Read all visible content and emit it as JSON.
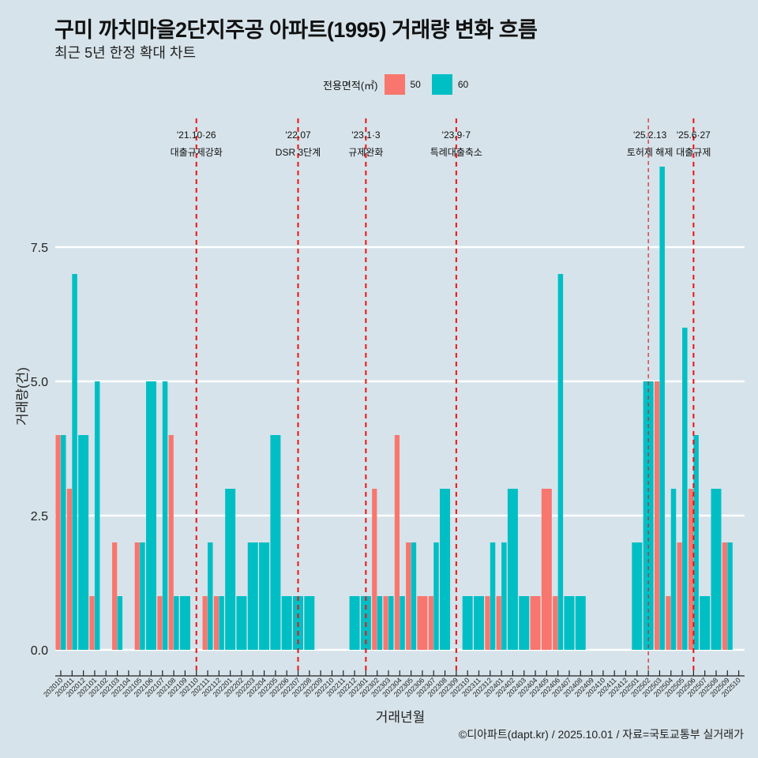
{
  "header": {
    "title": "구미 까치마을2단지주공 아파트(1995) 거래량 변화 흐름",
    "subtitle": "최근 5년 한정 확대 차트"
  },
  "legend": {
    "title": "전용면적(㎡)",
    "items": [
      {
        "label": "50",
        "color": "#F8766D"
      },
      {
        "label": "60",
        "color": "#00BFC4"
      }
    ]
  },
  "caption": "©디아파트(dapt.kr) / 2025.10.01 / 자료=국토교통부 실거래가",
  "chart_data": {
    "type": "bar",
    "title": "구미 까치마을2단지주공 아파트(1995) 거래량 변화 흐름",
    "subtitle": "최근 5년 한정 확대 차트",
    "xlabel": "거래년월",
    "ylabel": "거래량(건)",
    "ylim": [
      0,
      9
    ],
    "yticks": [
      0.0,
      2.5,
      5.0,
      7.5
    ],
    "ytick_labels": [
      "0.0",
      "2.5",
      "5.0",
      "7.5"
    ],
    "grid": true,
    "legend_position": "top",
    "categories": [
      "202010",
      "202011",
      "202012",
      "202101",
      "202102",
      "202103",
      "202104",
      "202105",
      "202106",
      "202107",
      "202108",
      "202109",
      "202110",
      "202111",
      "202112",
      "202201",
      "202202",
      "202203",
      "202204",
      "202205",
      "202206",
      "202207",
      "202208",
      "202209",
      "202210",
      "202211",
      "202212",
      "202301",
      "202302",
      "202303",
      "202304",
      "202305",
      "202306",
      "202307",
      "202308",
      "202309",
      "202310",
      "202311",
      "202312",
      "202401",
      "202402",
      "202403",
      "202404",
      "202405",
      "202406",
      "202407",
      "202408",
      "202409",
      "202410",
      "202411",
      "202412",
      "202501",
      "202502",
      "202503",
      "202504",
      "202505",
      "202506",
      "202507",
      "202508",
      "202509",
      "202510"
    ],
    "series": [
      {
        "name": "50",
        "color": "#F8766D",
        "values": [
          4,
          3,
          0,
          1,
          0,
          2,
          0,
          2,
          0,
          1,
          4,
          0,
          0,
          1,
          1,
          0,
          0,
          0,
          0,
          0,
          0,
          0,
          0,
          0,
          0,
          0,
          0,
          0,
          3,
          1,
          4,
          2,
          1,
          1,
          0,
          0,
          0,
          0,
          1,
          1,
          0,
          0,
          1,
          3,
          1,
          0,
          0,
          0,
          0,
          0,
          0,
          0,
          0,
          5,
          1,
          2,
          3,
          0,
          0,
          2,
          0
        ]
      },
      {
        "name": "60",
        "color": "#00BFC4",
        "values": [
          4,
          7,
          4,
          5,
          0,
          1,
          0,
          2,
          5,
          5,
          1,
          1,
          0,
          2,
          1,
          3,
          1,
          2,
          2,
          4,
          1,
          1,
          1,
          0,
          0,
          0,
          1,
          1,
          1,
          1,
          1,
          2,
          0,
          2,
          3,
          0,
          1,
          1,
          2,
          2,
          3,
          1,
          0,
          0,
          7,
          1,
          1,
          0,
          0,
          0,
          0,
          2,
          5,
          9,
          3,
          6,
          4,
          1,
          3,
          2,
          0
        ]
      }
    ],
    "annotations": [
      {
        "category": "202110",
        "line1": "'21.10·26",
        "line2": "대출규제강화",
        "style": "bold-dash"
      },
      {
        "category": "202207",
        "line1": "'22.07",
        "line2": "DSR 3단계",
        "style": "bold-dash"
      },
      {
        "category": "202301",
        "line1": "'23.1·3",
        "line2": "규제완화",
        "style": "bold-dash"
      },
      {
        "category": "202309",
        "line1": "'23.9·7",
        "line2": "특례대출축소",
        "style": "bold-dash"
      },
      {
        "category": "202502",
        "line1": "'25.2.13",
        "line2": "토허제 해제",
        "style": "thin-dash"
      },
      {
        "category": "202506",
        "line1": "'25.6·27",
        "line2": "대출규제",
        "style": "bold-dash"
      }
    ]
  }
}
